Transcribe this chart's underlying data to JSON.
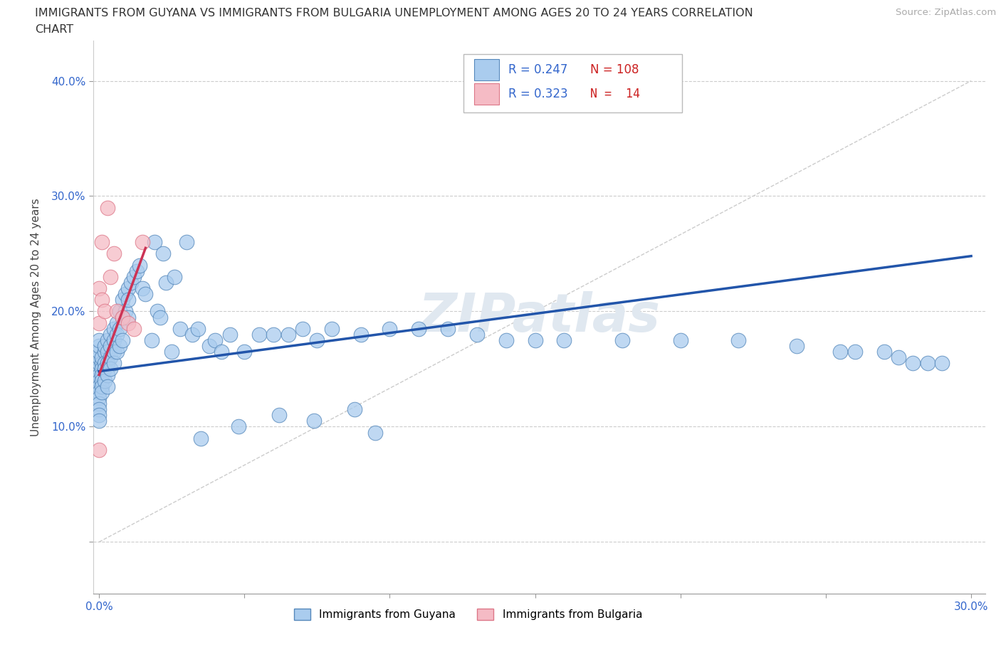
{
  "title_line1": "IMMIGRANTS FROM GUYANA VS IMMIGRANTS FROM BULGARIA UNEMPLOYMENT AMONG AGES 20 TO 24 YEARS CORRELATION",
  "title_line2": "CHART",
  "source": "Source: ZipAtlas.com",
  "ylabel": "Unemployment Among Ages 20 to 24 years",
  "guyana_color": "#aaccee",
  "guyana_edge": "#5588bb",
  "bulgaria_color": "#f5bbc5",
  "bulgaria_edge": "#dd7788",
  "trend_guyana_color": "#2255aa",
  "trend_bulgaria_color": "#cc3355",
  "r_guyana": 0.247,
  "n_guyana": 108,
  "r_bulgaria": 0.323,
  "n_bulgaria": 14,
  "watermark": "ZIPatlas",
  "legend_label_g": "Immigrants from Guyana",
  "legend_label_b": "Immigrants from Bulgaria",
  "xlim_min": -0.002,
  "xlim_max": 0.305,
  "ylim_min": -0.045,
  "ylim_max": 0.435,
  "xtick_vals": [
    0.0,
    0.05,
    0.1,
    0.15,
    0.2,
    0.25,
    0.3
  ],
  "xtick_labels": [
    "0.0%",
    "",
    "",
    "",
    "",
    "",
    "30.0%"
  ],
  "ytick_vals": [
    0.0,
    0.1,
    0.2,
    0.3,
    0.4
  ],
  "ytick_labels": [
    "",
    "10.0%",
    "20.0%",
    "30.0%",
    "40.0%"
  ],
  "guyana_x": [
    0.0,
    0.0,
    0.0,
    0.0,
    0.0,
    0.0,
    0.0,
    0.0,
    0.0,
    0.0,
    0.0,
    0.0,
    0.0,
    0.0,
    0.0,
    0.001,
    0.001,
    0.001,
    0.001,
    0.001,
    0.001,
    0.001,
    0.002,
    0.002,
    0.002,
    0.002,
    0.002,
    0.003,
    0.003,
    0.003,
    0.003,
    0.003,
    0.004,
    0.004,
    0.004,
    0.004,
    0.005,
    0.005,
    0.005,
    0.005,
    0.006,
    0.006,
    0.006,
    0.007,
    0.007,
    0.007,
    0.008,
    0.008,
    0.008,
    0.009,
    0.009,
    0.01,
    0.01,
    0.01,
    0.011,
    0.012,
    0.013,
    0.014,
    0.015,
    0.016,
    0.018,
    0.019,
    0.02,
    0.021,
    0.022,
    0.023,
    0.025,
    0.026,
    0.028,
    0.03,
    0.032,
    0.034,
    0.038,
    0.04,
    0.042,
    0.045,
    0.05,
    0.055,
    0.06,
    0.065,
    0.07,
    0.075,
    0.08,
    0.09,
    0.1,
    0.11,
    0.12,
    0.13,
    0.14,
    0.15,
    0.16,
    0.18,
    0.2,
    0.22,
    0.24,
    0.255,
    0.26,
    0.27,
    0.275,
    0.28,
    0.285,
    0.29,
    0.035,
    0.048,
    0.062,
    0.074,
    0.088,
    0.095
  ],
  "guyana_y": [
    0.15,
    0.155,
    0.145,
    0.14,
    0.135,
    0.13,
    0.125,
    0.12,
    0.115,
    0.11,
    0.105,
    0.16,
    0.165,
    0.17,
    0.175,
    0.155,
    0.15,
    0.145,
    0.14,
    0.135,
    0.16,
    0.13,
    0.165,
    0.155,
    0.15,
    0.17,
    0.14,
    0.175,
    0.165,
    0.155,
    0.145,
    0.135,
    0.18,
    0.17,
    0.16,
    0.15,
    0.185,
    0.175,
    0.165,
    0.155,
    0.19,
    0.18,
    0.165,
    0.2,
    0.185,
    0.17,
    0.21,
    0.195,
    0.175,
    0.215,
    0.2,
    0.22,
    0.21,
    0.195,
    0.225,
    0.23,
    0.235,
    0.24,
    0.22,
    0.215,
    0.175,
    0.26,
    0.2,
    0.195,
    0.25,
    0.225,
    0.165,
    0.23,
    0.185,
    0.26,
    0.18,
    0.185,
    0.17,
    0.175,
    0.165,
    0.18,
    0.165,
    0.18,
    0.18,
    0.18,
    0.185,
    0.175,
    0.185,
    0.18,
    0.185,
    0.185,
    0.185,
    0.18,
    0.175,
    0.175,
    0.175,
    0.175,
    0.175,
    0.175,
    0.17,
    0.165,
    0.165,
    0.165,
    0.16,
    0.155,
    0.155,
    0.155,
    0.09,
    0.1,
    0.11,
    0.105,
    0.115,
    0.095
  ],
  "bulgaria_x": [
    0.0,
    0.0,
    0.0,
    0.001,
    0.001,
    0.002,
    0.003,
    0.004,
    0.005,
    0.006,
    0.008,
    0.01,
    0.012,
    0.015
  ],
  "bulgaria_y": [
    0.08,
    0.22,
    0.19,
    0.26,
    0.21,
    0.2,
    0.29,
    0.23,
    0.25,
    0.2,
    0.195,
    0.19,
    0.185,
    0.26
  ],
  "trend_g_x0": 0.0,
  "trend_g_y0": 0.148,
  "trend_g_x1": 0.3,
  "trend_g_y1": 0.248,
  "trend_b_x0": 0.0,
  "trend_b_y0": 0.145,
  "trend_b_x1": 0.016,
  "trend_b_y1": 0.255
}
